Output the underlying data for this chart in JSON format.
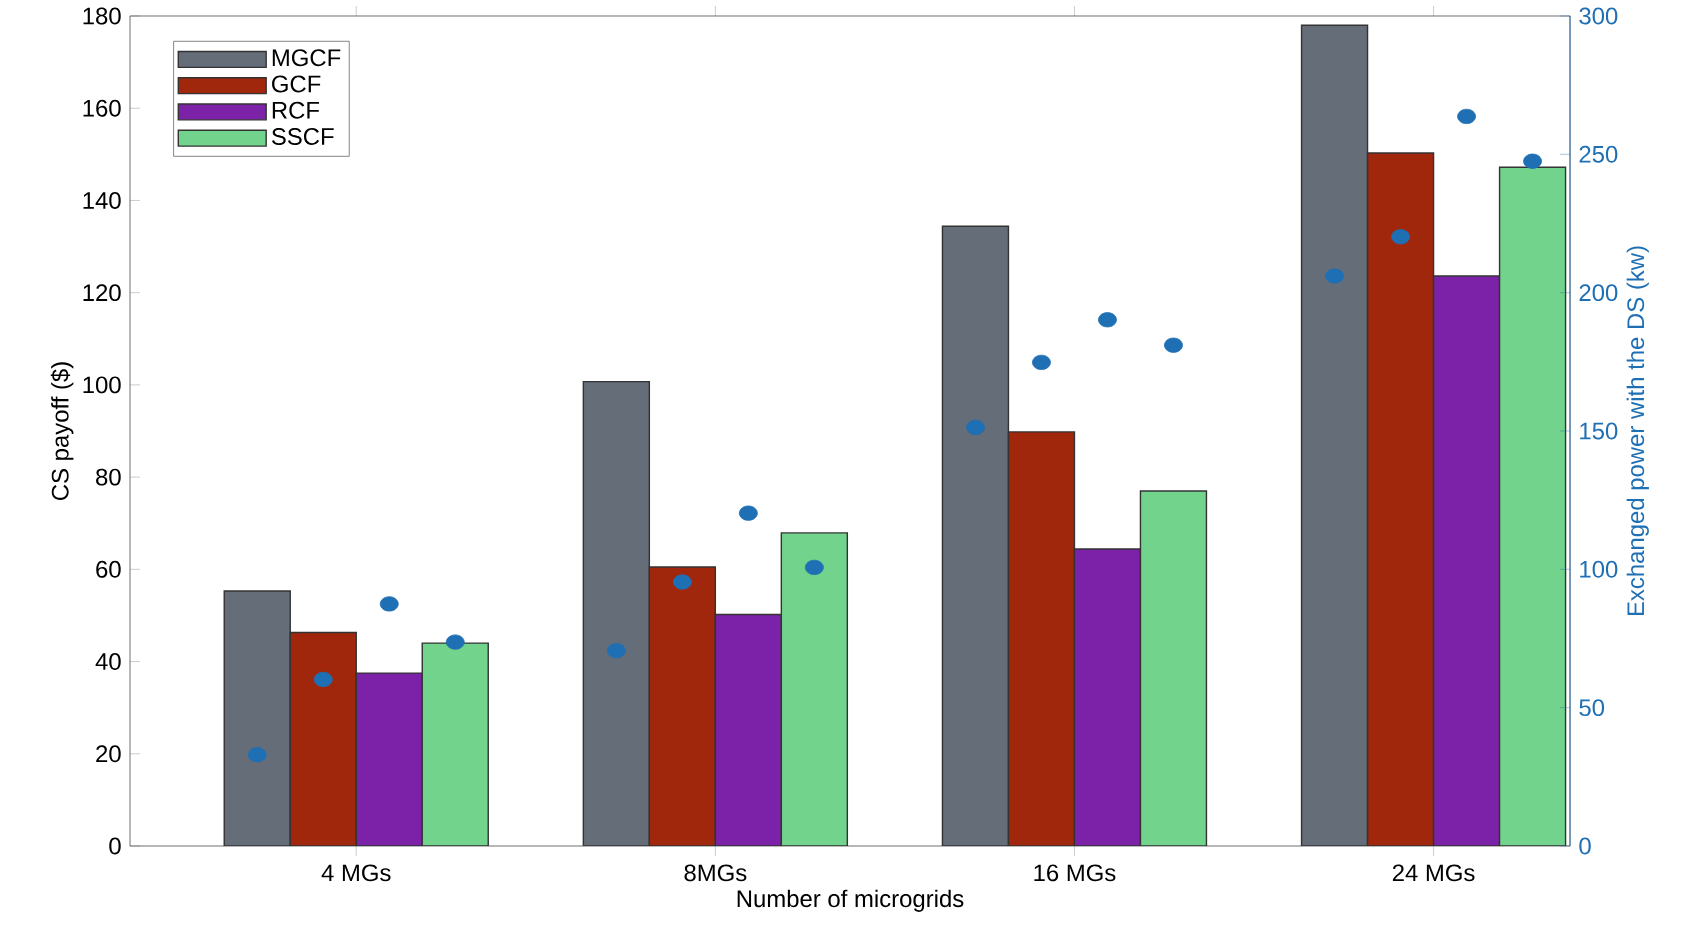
{
  "chart_data": {
    "type": "bar",
    "xlabel": "Number of microgrids",
    "ylabel": "CS payoff ($)",
    "y2label": "Exchanged power with the DS (kw)",
    "categories": [
      "4 MGs",
      "8MGs",
      "16 MGs",
      "24 MGs"
    ],
    "series": [
      {
        "name": "MGCF",
        "color": "#656d78",
        "values": [
          55.3,
          100.7,
          134.4,
          178
        ]
      },
      {
        "name": "GCF",
        "color": "#a0260c",
        "values": [
          46.3,
          60.5,
          89.8,
          150.3
        ]
      },
      {
        "name": "RCF",
        "color": "#7c22a8",
        "values": [
          37.5,
          50.2,
          64.4,
          123.6
        ]
      },
      {
        "name": "SSCF",
        "color": "#72d38c",
        "values": [
          44,
          67.9,
          77,
          147.2
        ]
      },
      {
        "type": "scatter",
        "axis": "y2",
        "marker": "circle",
        "color": "#1f6fb4",
        "x": [
          "4 MGs",
          "8MGs",
          "16 MGs",
          "24 MGs"
        ],
        "values": [
          33,
          70.6,
          151.3,
          206
        ]
      },
      {
        "type": "scatter",
        "axis": "y2",
        "marker": "circle",
        "color": "#1f6fb4",
        "x": [
          "4 MGs",
          "8MGs",
          "16 MGs",
          "24 MGs"
        ],
        "values": [
          60.2,
          95.4,
          174.8,
          220.2
        ]
      },
      {
        "type": "scatter",
        "axis": "y2",
        "marker": "circle",
        "color": "#1f6fb4",
        "x": [
          "4 MGs",
          "8MGs",
          "16 MGs",
          "24 MGs"
        ],
        "values": [
          87.5,
          120.3,
          190.2,
          263.7
        ]
      },
      {
        "type": "scatter",
        "axis": "y2",
        "marker": "circle",
        "color": "#1f6fb4",
        "x": [
          "4 MGs",
          "8MGs",
          "16 MGs",
          "24 MGs"
        ],
        "values": [
          73.7,
          100.7,
          181,
          247.5
        ]
      }
    ],
    "ylim": [
      0,
      180
    ],
    "yticks": [
      0,
      20,
      40,
      60,
      80,
      100,
      120,
      140,
      160,
      180
    ],
    "y2lim": [
      0,
      300
    ],
    "y2ticks": [
      0,
      50,
      100,
      150,
      200,
      250,
      300
    ],
    "legend": "top left"
  }
}
